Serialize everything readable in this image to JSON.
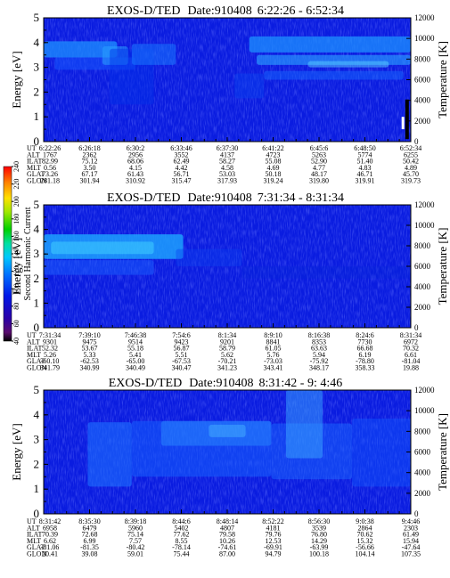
{
  "chart_data": [
    {
      "type": "heatmap",
      "title_instrument": "EXOS-D/TED",
      "title_date": "Date:910408",
      "title_time": "6:22:26 - 6:52:34",
      "ylabel": "Energy [eV]",
      "ylabel_right": "Temperature [K]",
      "ylim": [
        0,
        5
      ],
      "ylim_right": [
        0,
        12000
      ],
      "y_ticks": [
        "0",
        "1",
        "2",
        "3",
        "4",
        "5"
      ],
      "y_ticks_right": [
        "0",
        "2000",
        "4000",
        "6000",
        "8000",
        "10000",
        "12000"
      ],
      "row_labels": [
        "UT",
        "ALT",
        "ILAT",
        "MLT",
        "GLAT",
        "GLON"
      ],
      "columns": [
        [
          "6:22:26",
          "1767",
          "82.99",
          "0.56",
          "73.26",
          "281.18"
        ],
        [
          "6:26:18",
          "2362",
          "75.12",
          "3.50",
          "67.17",
          "301.94"
        ],
        [
          "6:30:2",
          "2956",
          "68.06",
          "4.15",
          "61.43",
          "310.92"
        ],
        [
          "6:33:46",
          "3552",
          "62.49",
          "4.42",
          "56.71",
          "315.47"
        ],
        [
          "6:37:30",
          "4137",
          "58.27",
          "4.58",
          "53.03",
          "317.93"
        ],
        [
          "6:41:22",
          "4723",
          "55.08",
          "4.69",
          "50.18",
          "319.24"
        ],
        [
          "6:45:6",
          "5263",
          "52.90",
          "4.77",
          "48.17",
          "319.80"
        ],
        [
          "6:48:50",
          "5774",
          "51.40",
          "4.83",
          "46.71",
          "319.91"
        ],
        [
          "6:52:34",
          "6255",
          "50.42",
          "4.89",
          "45.70",
          "319.73"
        ]
      ]
    },
    {
      "type": "heatmap",
      "title_instrument": "EXOS-D/TED",
      "title_date": "Date:910408",
      "title_time": "7:31:34 - 8:31:34",
      "ylabel": "Energy [eV]",
      "ylabel_right": "Temperature [K]",
      "ylim": [
        0,
        5
      ],
      "ylim_right": [
        0,
        12000
      ],
      "y_ticks": [
        "0",
        "1",
        "2",
        "3",
        "4",
        "5"
      ],
      "y_ticks_right": [
        "0",
        "2000",
        "4000",
        "6000",
        "8000",
        "10000",
        "12000"
      ],
      "row_labels": [
        "UT",
        "ALT",
        "ILAT",
        "MLT",
        "GLAT",
        "GLON"
      ],
      "columns": [
        [
          "7:31:34",
          "9301",
          "52.32",
          "5.26",
          "-60.10",
          "341.79"
        ],
        [
          "7:39:10",
          "9475",
          "53.67",
          "5.33",
          "-62.53",
          "340.99"
        ],
        [
          "7:46:38",
          "9514",
          "55.18",
          "5.41",
          "-65.00",
          "340.49"
        ],
        [
          "7:54:6",
          "9423",
          "56.87",
          "5.51",
          "-67.53",
          "340.47"
        ],
        [
          "8:1:34",
          "9201",
          "58.79",
          "5.62",
          "-70.21",
          "341.23"
        ],
        [
          "8:9:10",
          "8841",
          "61.05",
          "5.76",
          "-73.03",
          "343.41"
        ],
        [
          "8:16:38",
          "8353",
          "63.63",
          "5.94",
          "-75.92",
          "348.17"
        ],
        [
          "8:24:6",
          "7730",
          "66.68",
          "6.19",
          "-78.80",
          "358.33"
        ],
        [
          "8:31:34",
          "6972",
          "70.32",
          "6.61",
          "-81.04",
          "19.88"
        ]
      ]
    },
    {
      "type": "heatmap",
      "title_instrument": "EXOS-D/TED",
      "title_date": "Date:910408",
      "title_time": "8:31:42 - 9: 4:46",
      "ylabel": "Energy [eV]",
      "ylabel_right": "Temperature [K]",
      "ylim": [
        0,
        5
      ],
      "ylim_right": [
        0,
        12000
      ],
      "y_ticks": [
        "0",
        "1",
        "2",
        "3",
        "4",
        "5"
      ],
      "y_ticks_right": [
        "0",
        "2000",
        "4000",
        "6000",
        "8000",
        "10000",
        "12000"
      ],
      "row_labels": [
        "UT",
        "ALT",
        "ILAT",
        "MLT",
        "GLAT",
        "GLON"
      ],
      "columns": [
        [
          "8:31:42",
          "6958",
          "70.39",
          "6.62",
          "-81.06",
          "20.41"
        ],
        [
          "8:35:30",
          "6479",
          "72.68",
          "6.99",
          "-81.35",
          "39.08"
        ],
        [
          "8:39:18",
          "5960",
          "75.14",
          "7.57",
          "-80.42",
          "59.01"
        ],
        [
          "8:44:6",
          "5402",
          "77.62",
          "8.55",
          "-78.14",
          "75.44"
        ],
        [
          "8:48:14",
          "4807",
          "79.58",
          "10.26",
          "-74.61",
          "87.00"
        ],
        [
          "8:52:22",
          "4181",
          "79.76",
          "12.53",
          "-69.91",
          "94.79"
        ],
        [
          "8:56:30",
          "3539",
          "76.80",
          "14.29",
          "-63.99",
          "100.18"
        ],
        [
          "9:0:38",
          "2864",
          "70.62",
          "15.32",
          "-56.66",
          "104.14"
        ],
        [
          "9:4:46",
          "2303",
          "61.49",
          "15.94",
          "-47.64",
          "107.35"
        ]
      ]
    }
  ],
  "colorbar": {
    "label": "Second Harmonic Current",
    "ticks": [
      "40",
      "60",
      "80",
      "100",
      "120",
      "140",
      "160",
      "180",
      "200",
      "220",
      "240"
    ]
  }
}
